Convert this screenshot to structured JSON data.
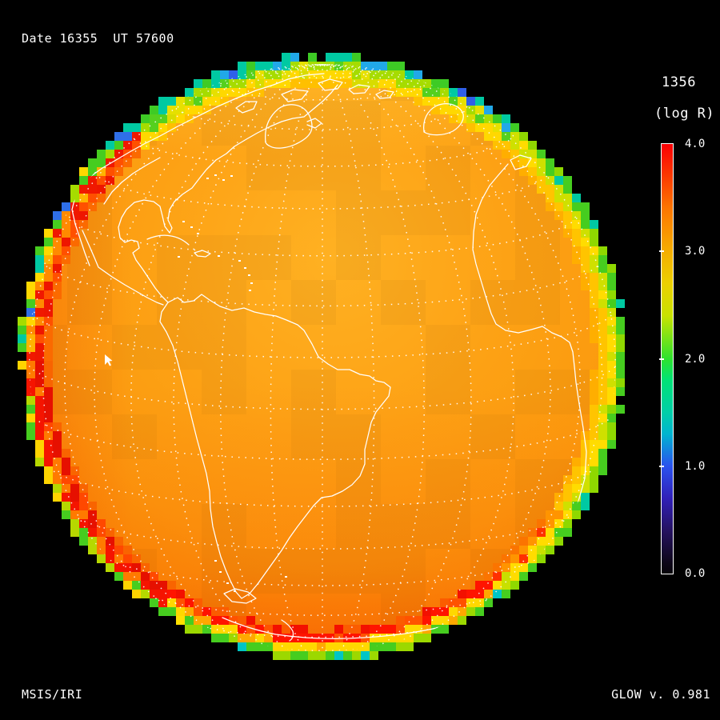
{
  "header": {
    "date_label": "Date 16355  UT 57600"
  },
  "colorbar": {
    "wavelength_label": "1356",
    "units_label": "(log R)",
    "ticks": [
      {
        "label": "4.0",
        "value": 4.0
      },
      {
        "label": "3.0",
        "value": 3.0
      },
      {
        "label": "2.0",
        "value": 2.0
      },
      {
        "label": "1.0",
        "value": 1.0
      },
      {
        "label": "0.0",
        "value": 0.0
      }
    ],
    "gradient_stops": [
      [
        0.0,
        "#fb0004"
      ],
      [
        0.075,
        "#fb3a00"
      ],
      [
        0.15,
        "#fd7600"
      ],
      [
        0.25,
        "#f5ae00"
      ],
      [
        0.325,
        "#ecd000"
      ],
      [
        0.4,
        "#c8e200"
      ],
      [
        0.5,
        "#2ee22e"
      ],
      [
        0.55,
        "#00e276"
      ],
      [
        0.625,
        "#00cfa8"
      ],
      [
        0.675,
        "#00b4d0"
      ],
      [
        0.75,
        "#2a52ee"
      ],
      [
        0.825,
        "#3020b8"
      ],
      [
        0.9,
        "#251260"
      ],
      [
        0.975,
        "#0d0618"
      ],
      [
        1.0,
        "#060309"
      ]
    ]
  },
  "footer": {
    "left_label": "MSIS/IRI",
    "right_label": "GLOW v. 0.981"
  },
  "globe": {
    "palette": {
      "background": "#000000",
      "body_bright": "#ffb122",
      "body_mid": "#fb9a0e",
      "body_deep": "#f87e02",
      "limb_red": "#ee1600",
      "limb_yellow": "#ffd800",
      "limb_green": "#46cd1f",
      "limb_teal": "#00c9a2",
      "limb_blue": "#2f5fe8",
      "coastline": "#ffffff",
      "graticule": "#ffffff"
    }
  },
  "chart_data": {
    "type": "heatmap",
    "title": "1356",
    "subtitle": "(log R)",
    "description": "Orthographic Earth-disk image of OI 1356 airglow emission brightness (log Rayleighs), Americas/Atlantic hemisphere",
    "date": 16355,
    "ut": 57600,
    "wavelength_angstroms": 1356,
    "units": "log R",
    "colorbar": {
      "label": "(log R)",
      "min": 0.0,
      "max": 4.0,
      "tick_values": [
        4.0,
        3.0,
        2.0,
        1.0,
        0.0
      ],
      "orientation": "vertical"
    },
    "value_summary": {
      "disk_interior_log_r": "≈3.2–3.6 (orange)",
      "limb_enhancement_log_r": "≈3.8–4.0 (red, left and bottom limb)",
      "outer_limb_falloff_log_r": "≈1.5–2.5 (green/teal outermost pixels)"
    },
    "models": [
      "MSIS",
      "IRI"
    ],
    "source_label": "GLOW v. 0.981"
  }
}
